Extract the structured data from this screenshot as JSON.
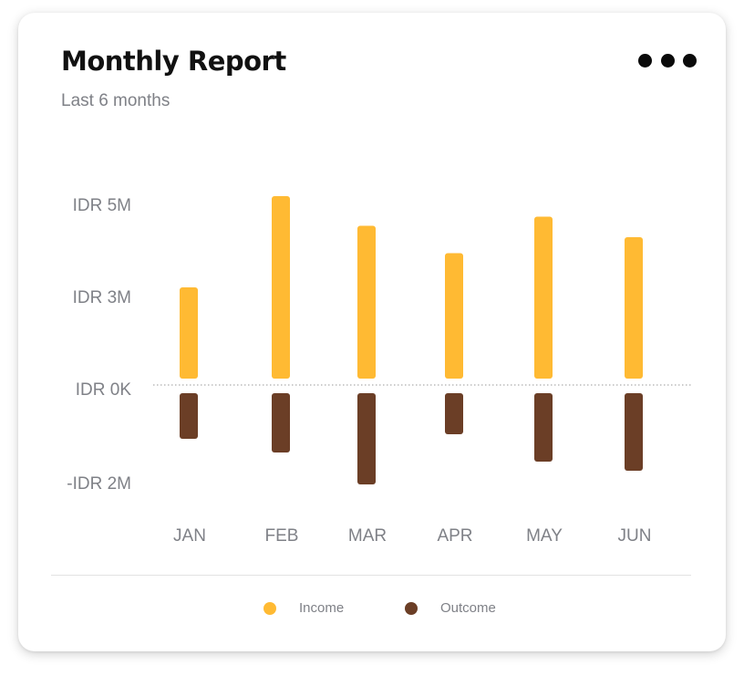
{
  "card": {
    "title": "Monthly Report",
    "subtitle": "Last 6 months",
    "more_icon": "more-horizontal-icon"
  },
  "legend": [
    {
      "label": "Income",
      "color": "#FFBA33"
    },
    {
      "label": "Outcome",
      "color": "#6B3E26"
    }
  ],
  "chart_data": {
    "type": "bar",
    "categories": [
      "JAN",
      "FEB",
      "MAR",
      "APR",
      "MAY",
      "JUN"
    ],
    "series": [
      {
        "name": "Income",
        "values": [
          2.0,
          4.0,
          3.35,
          2.75,
          3.55,
          3.1
        ],
        "color": "#FFBA33"
      },
      {
        "name": "Outcome",
        "values": [
          -1.0,
          -1.3,
          -2.0,
          -0.9,
          -1.5,
          -1.7
        ],
        "color": "#6B3E26"
      }
    ],
    "y_tick_labels": [
      "IDR 5M",
      "IDR 3M",
      "IDR 0K",
      "-IDR 2M"
    ],
    "zero_line": "dotted",
    "legend_position": "bottom"
  }
}
